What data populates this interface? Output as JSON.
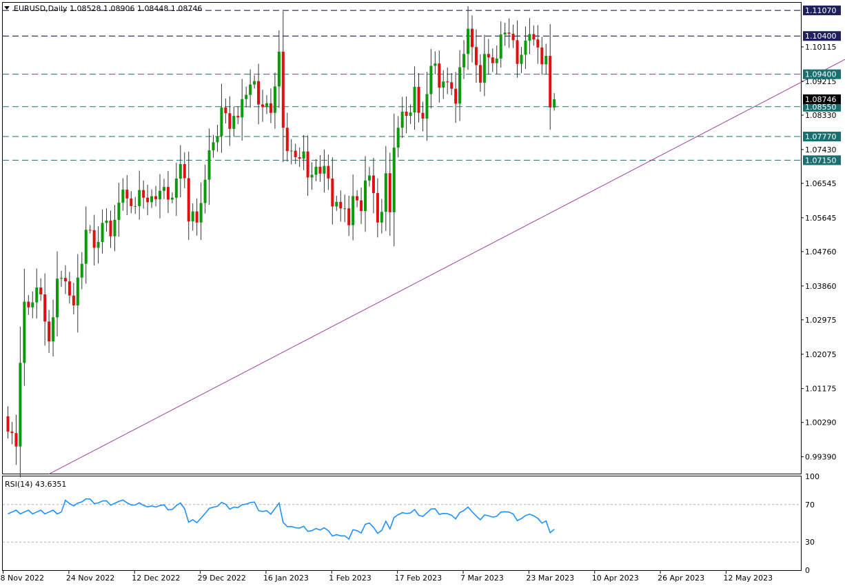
{
  "chart_data": {
    "type": "candlestick",
    "symbol_header": "EURUSD,Daily  1.08528 1.08906 1.08448 1.08746",
    "ohlc_last": {
      "open": 1.08528,
      "high": 1.08906,
      "low": 1.08448,
      "close": 1.08746
    },
    "price_ylim": [
      0.9895,
      1.1127
    ],
    "price_ticks": [
      "1.10115",
      "1.09215",
      "1.08330",
      "1.07430",
      "1.06545",
      "1.05645",
      "1.04760",
      "1.03860",
      "1.02975",
      "1.02075",
      "1.01175",
      "1.00290",
      "0.99390"
    ],
    "horizontal_levels": [
      {
        "label": "1.11070",
        "value": 1.1107,
        "style": "dash-dark",
        "tag_color": "#1f1f5e"
      },
      {
        "label": "1.10400",
        "value": 1.104,
        "style": "dash-dark",
        "tag_color": "#1f1f5e"
      },
      {
        "label": "1.09400",
        "value": 1.094,
        "style": "dash-teal",
        "tag_color": "#1a7070"
      },
      {
        "label": "1.08550",
        "value": 1.0855,
        "style": "dash-teal",
        "tag_color": "#1a7070"
      },
      {
        "label": "1.07770",
        "value": 1.0777,
        "style": "dash-teal",
        "tag_color": "#1a7070"
      },
      {
        "label": "1.07150",
        "value": 1.0715,
        "style": "dash-teal",
        "tag_color": "#1a7070"
      }
    ],
    "current_price_tag": {
      "label": "1.08746",
      "value": 1.08746
    },
    "trendline": {
      "from": {
        "bar": 10,
        "price": 0.9894
      },
      "to": {
        "bar": 214,
        "price": 1.1036
      },
      "color": "#a040a0"
    },
    "x_ticks": [
      {
        "label": "8 Nov 2022",
        "bar": 0
      },
      {
        "label": "24 Nov 2022",
        "bar": 16
      },
      {
        "label": "12 Dec 2022",
        "bar": 32
      },
      {
        "label": "29 Dec 2022",
        "bar": 48
      },
      {
        "label": "16 Jan 2023",
        "bar": 64
      },
      {
        "label": "1 Feb 2023",
        "bar": 80
      },
      {
        "label": "17 Feb 2023",
        "bar": 96
      },
      {
        "label": "7 Mar 2023",
        "bar": 112
      },
      {
        "label": "23 Mar 2023",
        "bar": 128
      },
      {
        "label": "10 Apr 2023",
        "bar": 144
      },
      {
        "label": "26 Apr 2023",
        "bar": 160
      },
      {
        "label": "12 May 2023",
        "bar": 176
      }
    ],
    "closes": [
      1.0005,
      1.0001,
      0.9966,
      1.0185,
      1.0345,
      1.033,
      1.0343,
      1.0382,
      1.0364,
      1.0293,
      1.0241,
      1.0304,
      1.0405,
      1.0407,
      1.0398,
      1.0361,
      1.0335,
      1.0408,
      1.0444,
      1.0533,
      1.0532,
      1.0486,
      1.0501,
      1.0551,
      1.0557,
      1.0516,
      1.0559,
      1.0604,
      1.0638,
      1.0615,
      1.0595,
      1.0595,
      1.0637,
      1.0617,
      1.0605,
      1.0621,
      1.0613,
      1.0635,
      1.0645,
      1.0612,
      1.0617,
      1.0667,
      1.0705,
      1.0668,
      1.0555,
      1.0581,
      1.0552,
      1.0603,
      1.0664,
      1.0741,
      1.0762,
      1.0778,
      1.0853,
      1.0838,
      1.0797,
      1.0831,
      1.0827,
      1.0875,
      1.0886,
      1.0913,
      1.0922,
      1.0861,
      1.0854,
      1.0864,
      1.0839,
      1.0908,
      1.0999,
      1.08,
      1.0739,
      1.074,
      1.0723,
      1.0719,
      1.0738,
      1.067,
      1.0677,
      1.0698,
      1.068,
      1.07,
      1.0667,
      1.0594,
      1.0606,
      1.0589,
      1.0589,
      1.0545,
      1.0621,
      1.061,
      1.0582,
      1.0662,
      1.0675,
      1.0629,
      1.0552,
      1.058,
      1.0681,
      1.0579,
      1.0748,
      1.08,
      1.0842,
      1.0831,
      1.084,
      1.0907,
      1.0839,
      1.0824,
      1.0888,
      1.0962,
      1.0968,
      1.0905,
      1.0921,
      1.0919,
      1.0902,
      1.0863,
      1.0958,
      1.0993,
      1.1059,
      1.1011,
      1.0964,
      1.0918,
      1.0993,
      1.0984,
      1.0969,
      1.0981,
      1.1044,
      1.1049,
      1.1046,
      1.1029,
      1.0967,
      1.0991,
      1.1028,
      1.1045,
      1.1031,
      1.101,
      1.0966,
      1.0988,
      1.0853,
      1.0875
    ],
    "rsi": {
      "label": "RSI(14) 43.6351",
      "period": 14,
      "value": 43.6351,
      "ylim": [
        0,
        100
      ],
      "ticks": [
        "100",
        "70",
        "30",
        "0"
      ],
      "levels": [
        70,
        30
      ]
    }
  }
}
